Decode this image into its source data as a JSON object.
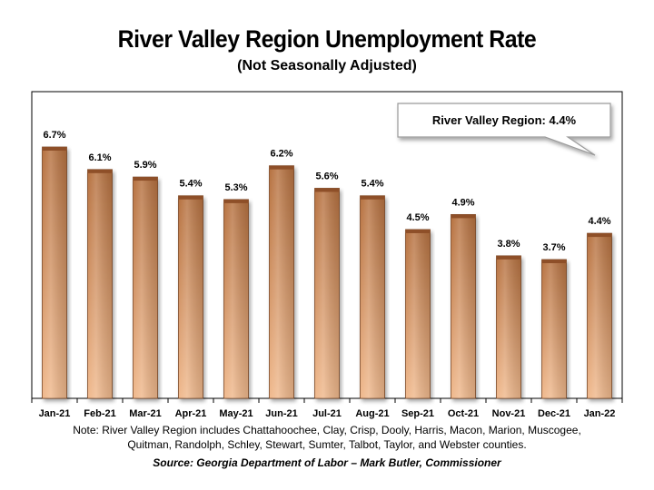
{
  "chart_data": {
    "type": "bar",
    "title": "River Valley Region Unemployment Rate",
    "subtitle": "(Not Seasonally Adjusted)",
    "categories": [
      "Jan-21",
      "Feb-21",
      "Mar-21",
      "Apr-21",
      "May-21",
      "Jun-21",
      "Jul-21",
      "Aug-21",
      "Sep-21",
      "Oct-21",
      "Nov-21",
      "Dec-21",
      "Jan-22"
    ],
    "values": [
      6.7,
      6.1,
      5.9,
      5.4,
      5.3,
      6.2,
      5.6,
      5.4,
      4.5,
      4.9,
      3.8,
      3.7,
      4.4
    ],
    "data_labels": [
      "6.7%",
      "6.1%",
      "5.9%",
      "5.4%",
      "5.3%",
      "6.2%",
      "5.6%",
      "5.4%",
      "4.5%",
      "4.9%",
      "3.8%",
      "3.7%",
      "4.4%"
    ],
    "ylim": [
      0,
      7.0
    ],
    "xlabel": "",
    "ylabel": "",
    "grid": false,
    "bar_color_top": "#b5703f",
    "bar_color_bottom": "#f0b98d",
    "annotation": "River Valley Region: 4.4%"
  },
  "note": "Note: River Valley Region includes Chattahoochee, Clay, Crisp, Dooly, Harris, Macon, Marion, Muscogee, Quitman, Randolph, Schley, Stewart, Sumter, Talbot, Taylor, and Webster counties.",
  "source": "Source:  Georgia Department of Labor – Mark Butler, Commissioner"
}
